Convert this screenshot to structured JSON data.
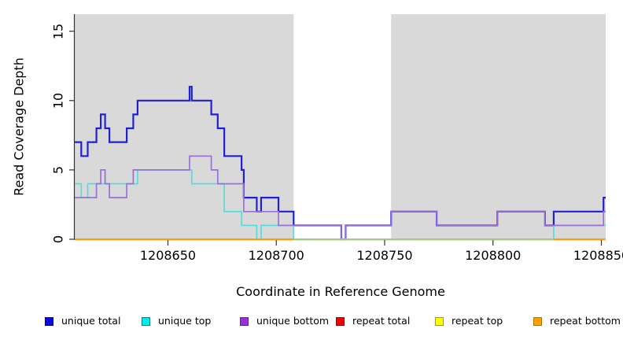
{
  "chart_data": {
    "type": "line",
    "line_style": "step",
    "title": "",
    "xlabel": "Coordinate in Reference Genome",
    "ylabel": "Read Coverage Depth",
    "xlim": [
      1208607,
      1208852
    ],
    "ylim": [
      0,
      16.23
    ],
    "grid": false,
    "plot_background": "#d9d9d9",
    "page_background": "#ffffff",
    "axis_color": "#333333",
    "highlight_region": {
      "x_start": 1208708,
      "x_end": 1208753,
      "color": "#ffffff"
    },
    "x_ticks": {
      "values": [
        1208650,
        1208700,
        1208750,
        1208800,
        1208850
      ],
      "labels": [
        "1208650",
        "1208700",
        "1208750",
        "1208800",
        "1208850"
      ]
    },
    "y_ticks": {
      "values": [
        0,
        5,
        10,
        15
      ],
      "labels": [
        "0",
        "5",
        "10",
        "15"
      ]
    },
    "series": [
      {
        "name": "unique total",
        "color": "#2121d3",
        "width": 2.2,
        "in_legend": true,
        "points": [
          [
            1208607,
            7
          ],
          [
            1208610,
            6
          ],
          [
            1208613,
            7
          ],
          [
            1208617,
            8
          ],
          [
            1208619,
            9
          ],
          [
            1208621,
            8
          ],
          [
            1208623,
            7
          ],
          [
            1208631,
            8
          ],
          [
            1208634,
            9
          ],
          [
            1208636,
            10
          ],
          [
            1208660,
            11
          ],
          [
            1208661,
            10
          ],
          [
            1208670,
            9
          ],
          [
            1208673,
            8
          ],
          [
            1208676,
            6
          ],
          [
            1208684,
            5
          ],
          [
            1208685,
            3
          ],
          [
            1208691,
            2
          ],
          [
            1208693,
            3
          ],
          [
            1208701,
            2
          ],
          [
            1208708,
            1
          ],
          [
            1208730,
            0
          ],
          [
            1208732,
            1
          ],
          [
            1208753,
            2
          ],
          [
            1208774,
            1
          ],
          [
            1208802,
            2
          ],
          [
            1208824,
            1
          ],
          [
            1208828,
            2
          ],
          [
            1208851,
            3
          ],
          [
            1208852,
            3
          ]
        ]
      },
      {
        "name": "unique top",
        "color": "#55dddd",
        "width": 1.7,
        "in_legend": true,
        "points": [
          [
            1208607,
            4
          ],
          [
            1208610,
            3
          ],
          [
            1208613,
            4
          ],
          [
            1208636,
            5
          ],
          [
            1208661,
            4
          ],
          [
            1208676,
            2
          ],
          [
            1208684,
            1
          ],
          [
            1208691,
            0
          ],
          [
            1208693,
            1
          ],
          [
            1208708,
            0
          ],
          [
            1208828,
            1
          ],
          [
            1208852,
            1
          ]
        ]
      },
      {
        "name": "unique bottom",
        "color": "#9a6fdb",
        "width": 1.7,
        "in_legend": true,
        "points": [
          [
            1208607,
            3
          ],
          [
            1208617,
            4
          ],
          [
            1208619,
            5
          ],
          [
            1208621,
            4
          ],
          [
            1208623,
            3
          ],
          [
            1208631,
            4
          ],
          [
            1208634,
            5
          ],
          [
            1208660,
            6
          ],
          [
            1208670,
            5
          ],
          [
            1208673,
            4
          ],
          [
            1208685,
            2
          ],
          [
            1208701,
            1
          ],
          [
            1208730,
            0
          ],
          [
            1208732,
            1
          ],
          [
            1208753,
            2
          ],
          [
            1208774,
            1
          ],
          [
            1208802,
            2
          ],
          [
            1208824,
            1
          ],
          [
            1208851,
            2
          ],
          [
            1208852,
            2
          ]
        ]
      },
      {
        "name": "repeat total",
        "color": "#ff0000",
        "width": 1.5,
        "in_legend": true,
        "points": [
          [
            1208607,
            0
          ],
          [
            1208852,
            0
          ]
        ]
      },
      {
        "name": "repeat top",
        "color": "#ffff00",
        "width": 1.5,
        "in_legend": true,
        "points": [
          [
            1208607,
            0
          ],
          [
            1208852,
            0
          ]
        ]
      },
      {
        "name": "zero baseline (unlabeled)",
        "color": "#8fd39b",
        "width": 1.6,
        "in_legend": false,
        "points": [
          [
            1208607,
            0
          ],
          [
            1208852,
            0
          ]
        ]
      },
      {
        "name": "repeat bottom",
        "color": "#ff9e00",
        "width": 2.0,
        "in_legend": true,
        "segments": [
          [
            [
              1208607,
              0
            ],
            [
              1208708,
              0
            ]
          ],
          [
            [
              1208828,
              0
            ],
            [
              1208852,
              0
            ]
          ]
        ]
      }
    ]
  },
  "legend": {
    "position": "bottom",
    "items": [
      {
        "label": "unique total",
        "fill": "#0b0bdb",
        "border": "#0000a0"
      },
      {
        "label": "unique top",
        "fill": "#00eded",
        "border": "#008080"
      },
      {
        "label": "unique bottom",
        "fill": "#9c2fd8",
        "border": "#6a1d9e"
      },
      {
        "label": "repeat total",
        "fill": "#f00000",
        "border": "#a00000"
      },
      {
        "label": "repeat top",
        "fill": "#ffff00",
        "border": "#a0a000"
      },
      {
        "label": "repeat bottom",
        "fill": "#ffa200",
        "border": "#b06f00"
      }
    ]
  }
}
